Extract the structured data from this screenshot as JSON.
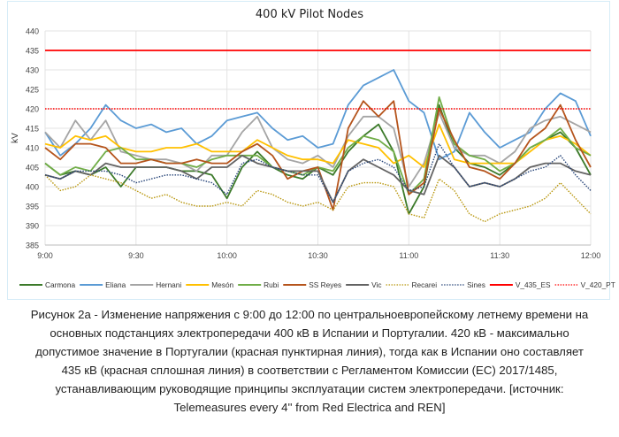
{
  "chart_data": {
    "type": "line",
    "title": "400 kV Pilot Nodes",
    "xlabel": "",
    "ylabel": "kV",
    "ylim": [
      385,
      440
    ],
    "yticks": [
      "385",
      "390",
      "395",
      "400",
      "405",
      "410",
      "415",
      "420",
      "425",
      "430",
      "435",
      "440"
    ],
    "xlim_minutes": [
      0,
      180
    ],
    "xticks": [
      "9:00",
      "9:30",
      "10:00",
      "10:30",
      "11:00",
      "11:30",
      "12:00"
    ],
    "grid": true,
    "legend_placement": "bottom",
    "x": [
      "9:00",
      "9:05",
      "9:10",
      "9:15",
      "9:20",
      "9:25",
      "9:30",
      "9:35",
      "9:40",
      "9:45",
      "9:50",
      "9:55",
      "10:00",
      "10:05",
      "10:10",
      "10:15",
      "10:20",
      "10:25",
      "10:30",
      "10:35",
      "10:40",
      "10:45",
      "10:50",
      "10:55",
      "11:00",
      "11:05",
      "11:10",
      "11:15",
      "11:20",
      "11:25",
      "11:30",
      "11:35",
      "11:40",
      "11:45",
      "11:50",
      "11:55",
      "12:00"
    ],
    "series": [
      {
        "name": "Carmona",
        "color": "#3c7a2a",
        "style": "solid",
        "values": [
          406,
          403,
          404,
          403,
          405,
          400,
          405,
          405,
          405,
          404,
          404,
          403,
          397,
          405,
          409,
          405,
          403,
          402,
          405,
          403,
          409,
          413,
          416,
          409,
          393,
          400,
          421,
          410,
          406,
          405,
          403,
          406,
          410,
          412,
          414,
          410,
          403
        ]
      },
      {
        "name": "Eliana",
        "color": "#5b9bd5",
        "style": "solid",
        "values": [
          414,
          408,
          411,
          415,
          421,
          417,
          415,
          416,
          414,
          415,
          411,
          413,
          417,
          418,
          419,
          415,
          412,
          413,
          410,
          411,
          421,
          426,
          428,
          430,
          422,
          419,
          407,
          409,
          419,
          414,
          410,
          412,
          414,
          420,
          424,
          422,
          413
        ]
      },
      {
        "name": "Hernani",
        "color": "#a5a5a5",
        "style": "solid",
        "values": [
          414,
          410,
          417,
          412,
          417,
          409,
          408,
          407,
          407,
          406,
          404,
          408,
          408,
          414,
          418,
          410,
          407,
          406,
          408,
          405,
          413,
          418,
          418,
          415,
          400,
          406,
          419,
          410,
          408,
          408,
          406,
          409,
          415,
          417,
          418,
          416,
          414
        ]
      },
      {
        "name": "Mesón",
        "color": "#ffc000",
        "style": "solid",
        "values": [
          411,
          410,
          413,
          412,
          413,
          410,
          409,
          409,
          410,
          410,
          411,
          409,
          409,
          409,
          412,
          410,
          408,
          407,
          407,
          406,
          412,
          411,
          410,
          406,
          408,
          405,
          416,
          407,
          406,
          406,
          406,
          406,
          409,
          412,
          413,
          411,
          408
        ]
      },
      {
        "name": "Rubi",
        "color": "#70ad47",
        "style": "solid",
        "values": [
          406,
          403,
          405,
          404,
          409,
          410,
          407,
          407,
          406,
          406,
          405,
          407,
          408,
          408,
          408,
          405,
          404,
          403,
          405,
          404,
          410,
          413,
          412,
          409,
          398,
          402,
          423,
          411,
          408,
          407,
          404,
          406,
          410,
          412,
          415,
          410,
          408
        ]
      },
      {
        "name": "SS Reyes",
        "color": "#b5541c",
        "style": "solid",
        "values": [
          410,
          407,
          411,
          411,
          410,
          406,
          406,
          407,
          406,
          406,
          407,
          406,
          406,
          409,
          411,
          408,
          402,
          404,
          405,
          394,
          415,
          422,
          418,
          422,
          398,
          401,
          420,
          412,
          405,
          404,
          402,
          406,
          412,
          415,
          421,
          412,
          405
        ]
      },
      {
        "name": "Vic",
        "color": "#636363",
        "style": "solid",
        "values": [
          403,
          402,
          404,
          403,
          406,
          405,
          405,
          405,
          405,
          404,
          402,
          405,
          405,
          408,
          406,
          405,
          404,
          404,
          404,
          396,
          404,
          407,
          405,
          403,
          399,
          398,
          408,
          405,
          400,
          401,
          400,
          402,
          405,
          406,
          406,
          404,
          403
        ]
      },
      {
        "name": "Recarei",
        "color": "#b8960c",
        "style": "dotted",
        "values": [
          403,
          399,
          400,
          403,
          402,
          401,
          399,
          397,
          398,
          396,
          395,
          395,
          396,
          395,
          399,
          398,
          396,
          395,
          396,
          394,
          400,
          401,
          401,
          400,
          393,
          392,
          402,
          399,
          393,
          391,
          393,
          394,
          395,
          397,
          401,
          397,
          393
        ]
      },
      {
        "name": "Sines",
        "color": "#264478",
        "style": "dotted",
        "values": [
          403,
          402,
          404,
          404,
          404,
          403,
          401,
          402,
          403,
          403,
          402,
          401,
          398,
          406,
          407,
          405,
          404,
          403,
          403,
          396,
          404,
          406,
          407,
          405,
          399,
          400,
          411,
          405,
          400,
          401,
          400,
          402,
          404,
          405,
          408,
          403,
          399
        ]
      },
      {
        "name": "V_435_ES",
        "color": "#ff0000",
        "style": "solid",
        "constant": 435
      },
      {
        "name": "V_420_PT",
        "color": "#ff0000",
        "style": "dotted",
        "constant": 420
      }
    ]
  },
  "caption": {
    "lines": [
      "Рисунок 2а - Изменение напряжения с 9:00 до 12:00 по центральноевропейскому летнему времени на",
      "основных подстанциях электропередачи 400 кВ в Испании и Португалии. 420 кВ - максимально",
      "допустимое значение в Португалии (красная пунктирная линия), тогда как в Испании оно составляет",
      "435 кВ (красная сплошная линия) в соответствии с Регламентом Комиссии (ЕС) 2017/1485,",
      "устанавливающим руководящие принципы эксплуатации систем электропередачи. [источник:",
      "Telemeasures every 4'' from Red Electrica and REN]"
    ]
  }
}
